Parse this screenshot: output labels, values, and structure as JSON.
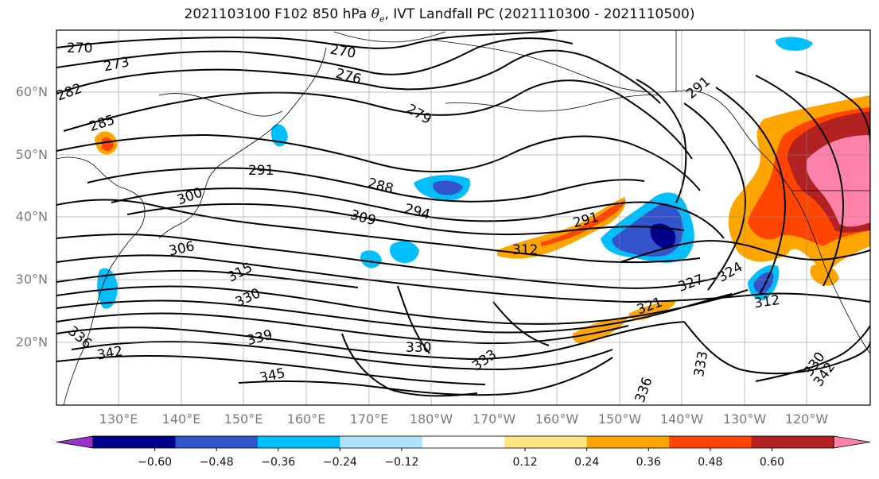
{
  "title": {
    "prefix": "2021103100 F102 850 hPa ",
    "symbol": "θ",
    "subscript": "e",
    "suffix": ", IVT Landfall PC (2021110300 - 2021110500)"
  },
  "map": {
    "lat_labels": [
      "20°N",
      "30°N",
      "40°N",
      "50°N",
      "60°N"
    ],
    "lon_labels": [
      "130°E",
      "140°E",
      "150°E",
      "160°E",
      "170°E",
      "180°W",
      "170°W",
      "160°W",
      "150°W",
      "140°W",
      "130°W",
      "120°W"
    ],
    "contour_labels": [
      "270",
      "273",
      "276",
      "279",
      "282",
      "285",
      "288",
      "291",
      "294",
      "300",
      "306",
      "309",
      "312",
      "315",
      "321",
      "324",
      "327",
      "330",
      "333",
      "336",
      "339",
      "342",
      "345"
    ]
  },
  "colorbar": {
    "ticks": [
      "−0.60",
      "−0.48",
      "−0.36",
      "−0.24",
      "−0.12",
      "0.12",
      "0.24",
      "0.36",
      "0.48",
      "0.60"
    ],
    "colors": [
      "#9932cc",
      "#00008b",
      "#3355cc",
      "#00bfff",
      "#b0e2ff",
      "#ffffff",
      "#ffe680",
      "#ffa500",
      "#ff4500",
      "#b22222",
      "#ff82ab"
    ]
  }
}
